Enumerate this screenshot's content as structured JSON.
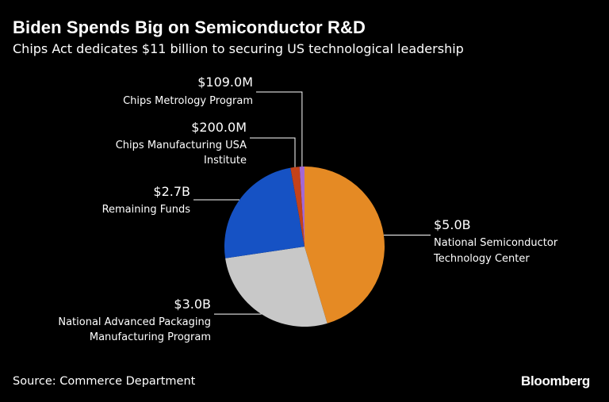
{
  "header": {
    "title": "Biden Spends Big on Semiconductor R&D",
    "subtitle": "Chips Act dedicates $11 billion to securing US technological leadership"
  },
  "footer": {
    "source": "Source: Commerce Department",
    "brand": "Bloomberg"
  },
  "chart_data": {
    "type": "pie",
    "title": "Biden Spends Big on Semiconductor R&D",
    "subtitle": "Chips Act dedicates $11 billion to securing US technological leadership",
    "unit": "USD",
    "slices": [
      {
        "value": 5.0,
        "value_label": "$5.0B",
        "label_lines": [
          "National Semiconductor",
          "Technology Center"
        ],
        "color": "#e58a24"
      },
      {
        "value": 3.0,
        "value_label": "$3.0B",
        "label_lines": [
          "National Advanced Packaging",
          "Manufacturing Program"
        ],
        "color": "#c8c8c8"
      },
      {
        "value": 2.7,
        "value_label": "$2.7B",
        "label_lines": [
          "Remaining Funds"
        ],
        "color": "#1652c4"
      },
      {
        "value": 0.2,
        "value_label": "$200.0M",
        "label_lines": [
          "Chips Manufacturing USA",
          "Institute"
        ],
        "color": "#c4421a"
      },
      {
        "value": 0.109,
        "value_label": "$109.0M",
        "label_lines": [
          "Chips Metrology Program"
        ],
        "color": "#a468d4"
      }
    ]
  }
}
